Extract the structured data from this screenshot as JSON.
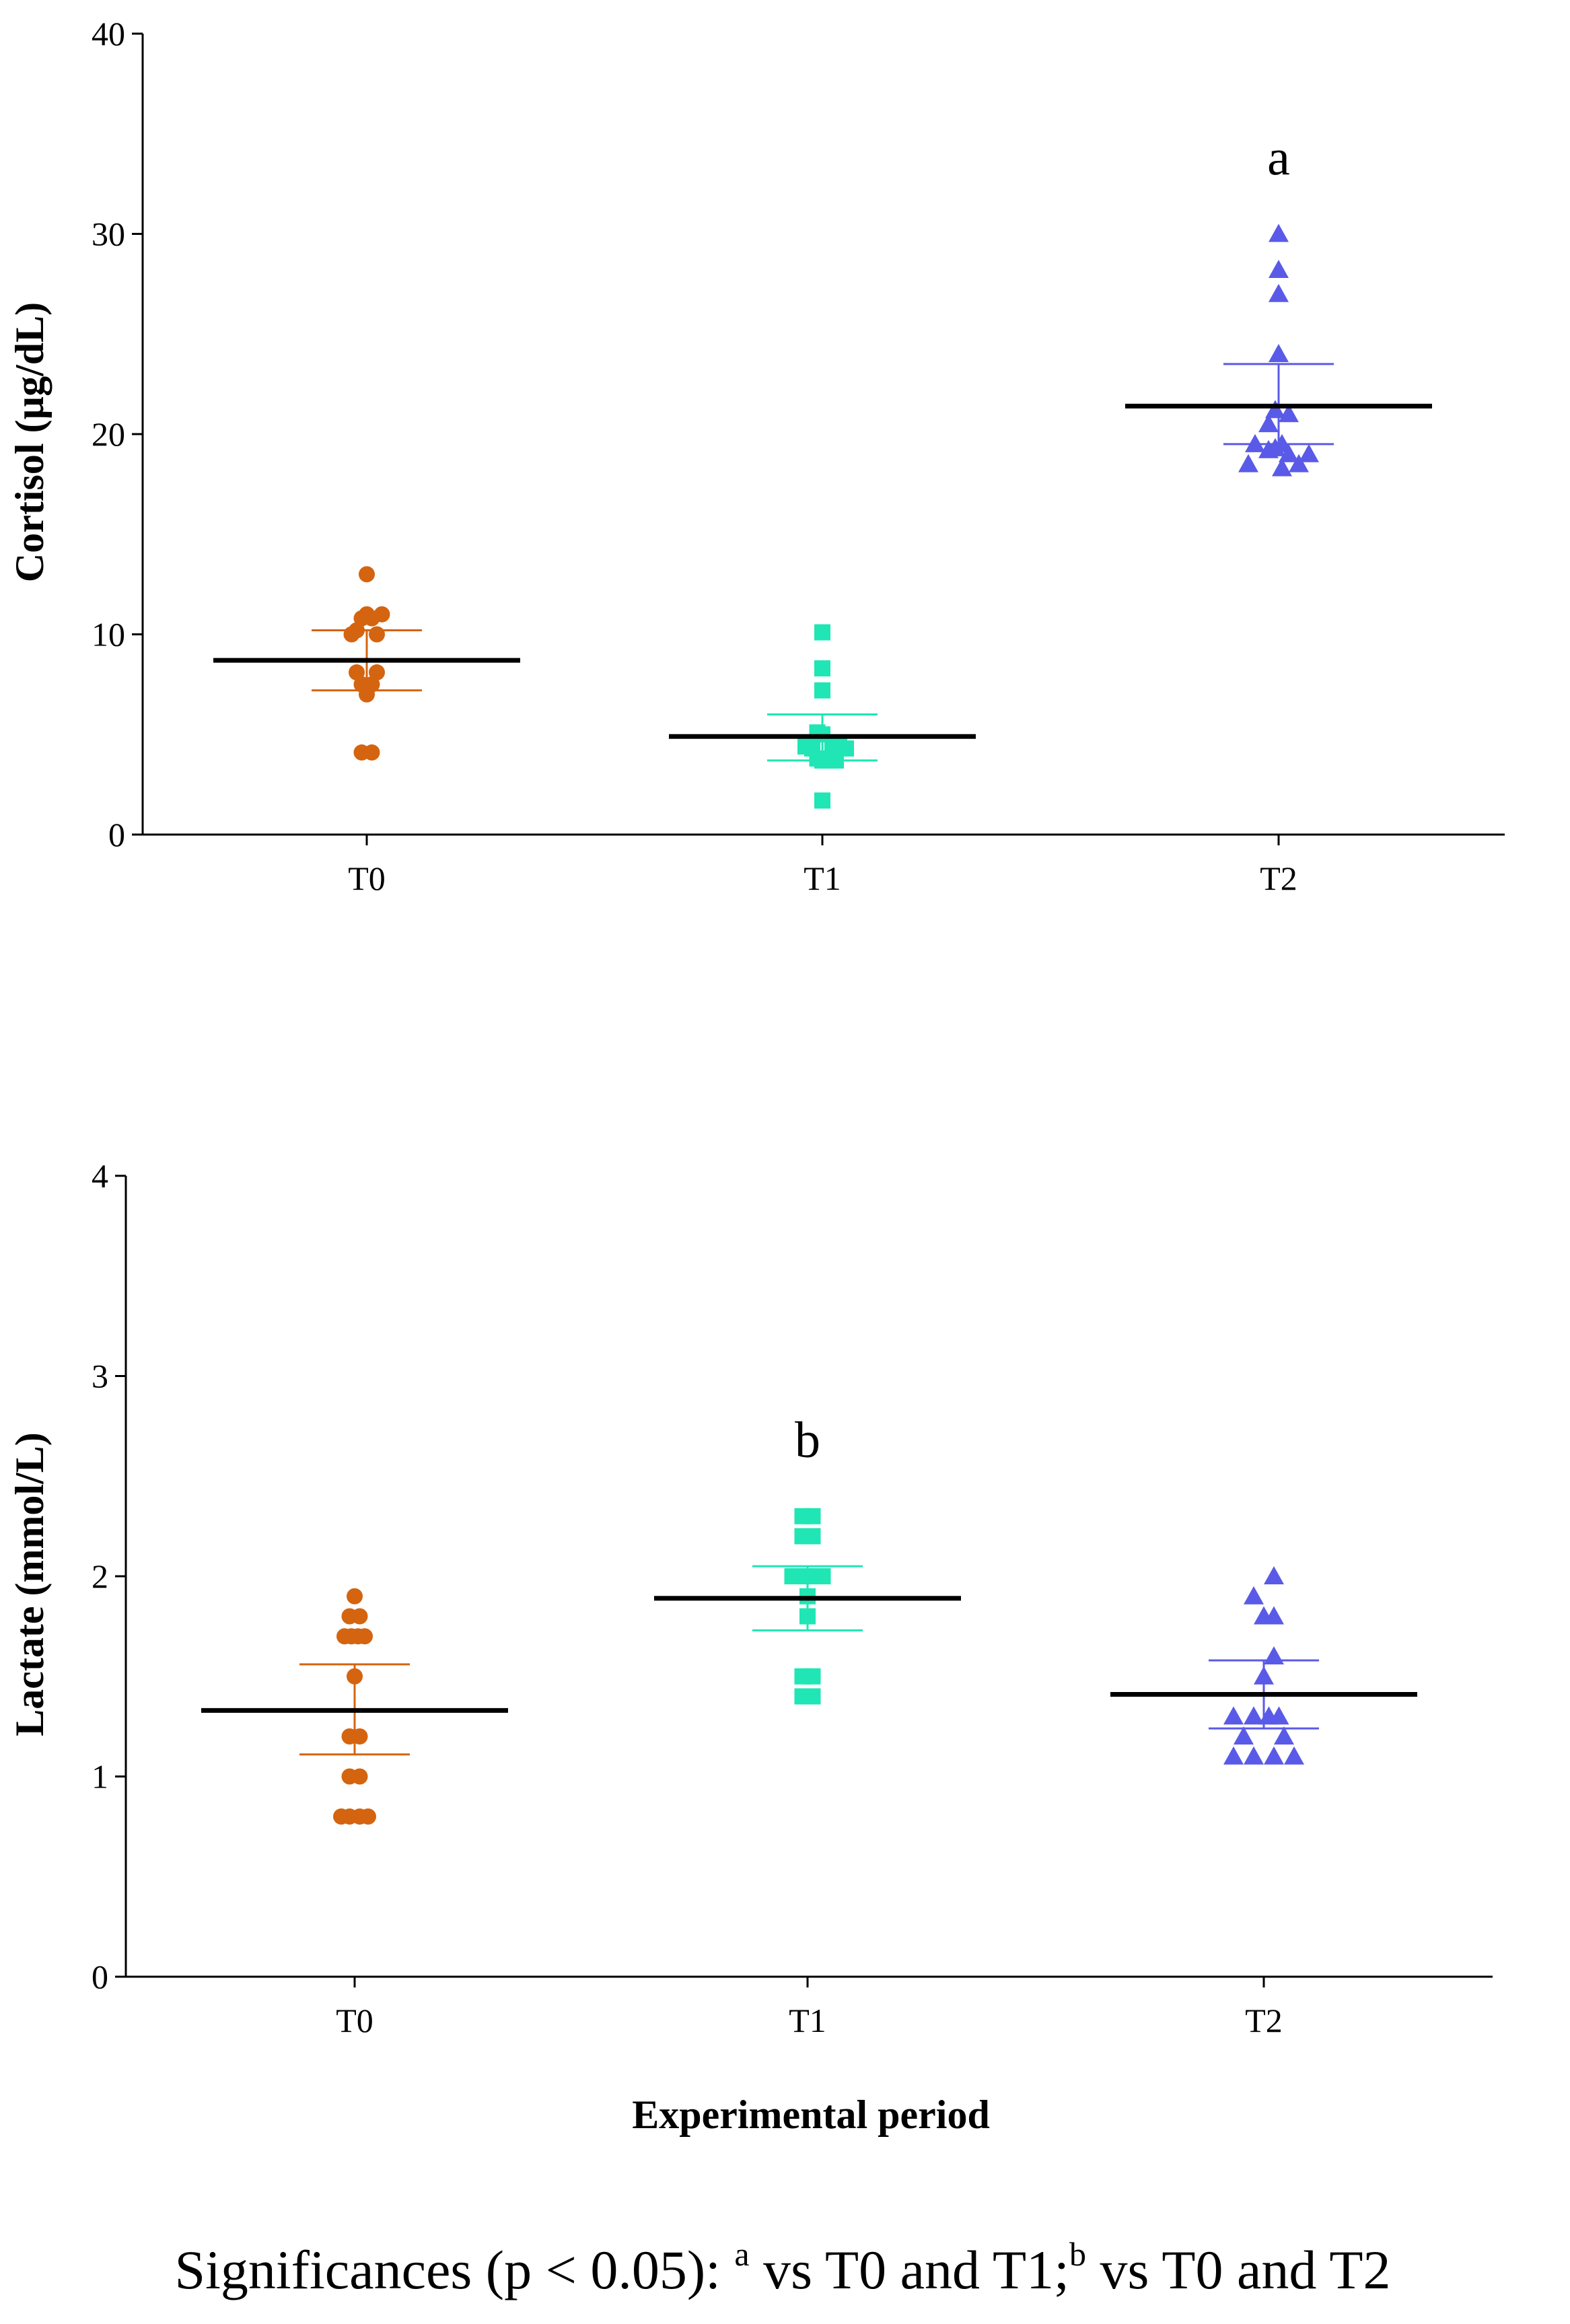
{
  "colors": {
    "T0": "#d4640f",
    "T1": "#1fe6b4",
    "T2": "#5a5ae8",
    "mean": "#000000",
    "axis": "#000000"
  },
  "x_label": "Experimental period",
  "footnote": {
    "prefix": "Significances (p < 0.05): ",
    "sup_a": "a",
    "text_a": " vs T0 and T1;",
    "sup_b": "b",
    "text_b": " vs  T0 and T2"
  },
  "chart_data": [
    {
      "type": "scatter",
      "ylabel": "Cortisol (µg/dL)",
      "ylim": [
        0,
        40
      ],
      "yticks": [
        "0",
        "10",
        "20",
        "30",
        "40"
      ],
      "categories": [
        "T0",
        "T1",
        "T2"
      ],
      "grid": false,
      "significance": {
        "category": "T2",
        "label": "a"
      },
      "series": [
        {
          "name": "T0",
          "marker": "circle",
          "mean": 8.7,
          "err_low": 7.2,
          "err_high": 10.2,
          "points": [
            {
              "x": -0.3,
              "y": 10.2
            },
            {
              "x": -0.15,
              "y": 10.8
            },
            {
              "x": 0,
              "y": 11.0
            },
            {
              "x": 0.15,
              "y": 10.8
            },
            {
              "x": 0.3,
              "y": 10.0
            },
            {
              "x": 0.45,
              "y": 11.0
            },
            {
              "x": -0.45,
              "y": 10.0
            },
            {
              "x": 0,
              "y": 13.0
            },
            {
              "x": -0.3,
              "y": 8.1
            },
            {
              "x": -0.15,
              "y": 7.5
            },
            {
              "x": 0,
              "y": 7.0
            },
            {
              "x": 0.15,
              "y": 7.5
            },
            {
              "x": 0.3,
              "y": 8.1
            },
            {
              "x": -0.15,
              "y": 4.1
            },
            {
              "x": 0.15,
              "y": 4.1
            }
          ]
        },
        {
          "name": "T1",
          "marker": "square",
          "mean": 4.9,
          "err_low": 3.7,
          "err_high": 6.0,
          "points": [
            {
              "x": 0,
              "y": 10.1
            },
            {
              "x": 0,
              "y": 8.3
            },
            {
              "x": 0,
              "y": 7.2
            },
            {
              "x": -0.15,
              "y": 5.1
            },
            {
              "x": 0,
              "y": 5.0
            },
            {
              "x": -0.5,
              "y": 4.4
            },
            {
              "x": -0.3,
              "y": 4.3
            },
            {
              "x": 0.3,
              "y": 4.4
            },
            {
              "x": 0.5,
              "y": 4.5
            },
            {
              "x": 0.7,
              "y": 4.3
            },
            {
              "x": -0.15,
              "y": 3.8
            },
            {
              "x": 0,
              "y": 3.7
            },
            {
              "x": 0.15,
              "y": 3.7
            },
            {
              "x": 0.4,
              "y": 3.7
            },
            {
              "x": 0,
              "y": 1.7
            }
          ]
        },
        {
          "name": "T2",
          "marker": "triangle",
          "mean": 21.4,
          "err_low": 19.5,
          "err_high": 23.5,
          "points": [
            {
              "x": 0,
              "y": 30.0
            },
            {
              "x": 0,
              "y": 28.2
            },
            {
              "x": 0,
              "y": 27.0
            },
            {
              "x": 0,
              "y": 24.0
            },
            {
              "x": -0.3,
              "y": 20.5
            },
            {
              "x": -0.1,
              "y": 21.2
            },
            {
              "x": 0.3,
              "y": 21.0
            },
            {
              "x": -0.7,
              "y": 19.5
            },
            {
              "x": -0.3,
              "y": 19.2
            },
            {
              "x": -0.1,
              "y": 19.3
            },
            {
              "x": 0.1,
              "y": 19.5
            },
            {
              "x": 0.3,
              "y": 19.0
            },
            {
              "x": -0.9,
              "y": 18.5
            },
            {
              "x": 0.1,
              "y": 18.3
            },
            {
              "x": 0.6,
              "y": 18.5
            },
            {
              "x": 0.9,
              "y": 19.0
            }
          ]
        }
      ]
    },
    {
      "type": "scatter",
      "ylabel": "Lactate (mmol/L)",
      "ylim": [
        0,
        4
      ],
      "yticks": [
        "0",
        "1",
        "2",
        "3",
        "4"
      ],
      "categories": [
        "T0",
        "T1",
        "T2"
      ],
      "grid": false,
      "significance": {
        "category": "T1",
        "label": "b"
      },
      "series": [
        {
          "name": "T0",
          "marker": "circle",
          "mean": 1.33,
          "err_low": 1.11,
          "err_high": 1.56,
          "points": [
            {
              "x": 0,
              "y": 1.9
            },
            {
              "x": -0.15,
              "y": 1.8
            },
            {
              "x": 0.15,
              "y": 1.8
            },
            {
              "x": -0.3,
              "y": 1.7
            },
            {
              "x": -0.1,
              "y": 1.7
            },
            {
              "x": 0.1,
              "y": 1.7
            },
            {
              "x": 0.3,
              "y": 1.7
            },
            {
              "x": 0,
              "y": 1.5
            },
            {
              "x": -0.15,
              "y": 1.2
            },
            {
              "x": 0.15,
              "y": 1.2
            },
            {
              "x": -0.15,
              "y": 1.0
            },
            {
              "x": 0.15,
              "y": 1.0
            },
            {
              "x": -0.4,
              "y": 0.8
            },
            {
              "x": -0.15,
              "y": 0.8
            },
            {
              "x": 0.15,
              "y": 0.8
            },
            {
              "x": 0.4,
              "y": 0.8
            }
          ]
        },
        {
          "name": "T1",
          "marker": "square",
          "mean": 1.89,
          "err_low": 1.73,
          "err_high": 2.05,
          "points": [
            {
              "x": -0.15,
              "y": 2.3
            },
            {
              "x": 0.15,
              "y": 2.3
            },
            {
              "x": -0.15,
              "y": 2.2
            },
            {
              "x": 0.15,
              "y": 2.2
            },
            {
              "x": -0.45,
              "y": 2.0
            },
            {
              "x": -0.15,
              "y": 2.0
            },
            {
              "x": 0.15,
              "y": 2.0
            },
            {
              "x": 0.45,
              "y": 2.0
            },
            {
              "x": 0,
              "y": 1.9
            },
            {
              "x": 0,
              "y": 1.8
            },
            {
              "x": -0.15,
              "y": 1.5
            },
            {
              "x": 0.15,
              "y": 1.5
            },
            {
              "x": -0.15,
              "y": 1.4
            },
            {
              "x": 0.15,
              "y": 1.4
            }
          ]
        },
        {
          "name": "T2",
          "marker": "triangle",
          "mean": 1.41,
          "err_low": 1.24,
          "err_high": 1.58,
          "points": [
            {
              "x": 0.3,
              "y": 2.0
            },
            {
              "x": -0.3,
              "y": 1.9
            },
            {
              "x": 0,
              "y": 1.8
            },
            {
              "x": 0.3,
              "y": 1.8
            },
            {
              "x": 0.3,
              "y": 1.6
            },
            {
              "x": 0,
              "y": 1.5
            },
            {
              "x": -0.9,
              "y": 1.3
            },
            {
              "x": -0.3,
              "y": 1.3
            },
            {
              "x": 0.15,
              "y": 1.3
            },
            {
              "x": 0.45,
              "y": 1.3
            },
            {
              "x": -0.6,
              "y": 1.2
            },
            {
              "x": 0.6,
              "y": 1.2
            },
            {
              "x": -0.9,
              "y": 1.1
            },
            {
              "x": -0.3,
              "y": 1.1
            },
            {
              "x": 0.3,
              "y": 1.1
            },
            {
              "x": 0.9,
              "y": 1.1
            }
          ]
        }
      ]
    }
  ]
}
